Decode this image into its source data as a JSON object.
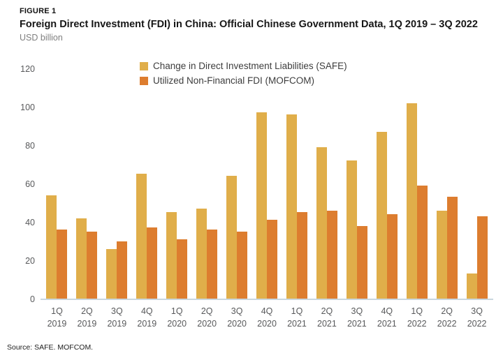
{
  "figure_label": "FIGURE 1",
  "title": "Foreign Direct Investment (FDI) in China: Official Chinese Government Data, 1Q 2019 – 3Q 2022",
  "unit_label": "USD billion",
  "source": "Source: SAFE. MOFCOM.",
  "colors": {
    "safe": "#e0ae4a",
    "mofcom": "#dd7d2f",
    "axis_line": "#c9d6de",
    "tick_text": "#58595b"
  },
  "chart_data": {
    "type": "bar",
    "title": "Foreign Direct Investment (FDI) in China: Official Chinese Government Data, 1Q 2019 – 3Q 2022",
    "xlabel": "",
    "ylabel": "USD billion",
    "ylim": [
      0,
      120
    ],
    "yticks": [
      0,
      20,
      40,
      60,
      80,
      100,
      120
    ],
    "grid": false,
    "legend_position": "top-center",
    "categories": [
      {
        "quarter": "1Q",
        "year": "2019"
      },
      {
        "quarter": "2Q",
        "year": "2019"
      },
      {
        "quarter": "3Q",
        "year": "2019"
      },
      {
        "quarter": "4Q",
        "year": "2019"
      },
      {
        "quarter": "1Q",
        "year": "2020"
      },
      {
        "quarter": "2Q",
        "year": "2020"
      },
      {
        "quarter": "3Q",
        "year": "2020"
      },
      {
        "quarter": "4Q",
        "year": "2020"
      },
      {
        "quarter": "1Q",
        "year": "2021"
      },
      {
        "quarter": "2Q",
        "year": "2021"
      },
      {
        "quarter": "3Q",
        "year": "2021"
      },
      {
        "quarter": "4Q",
        "year": "2021"
      },
      {
        "quarter": "1Q",
        "year": "2022"
      },
      {
        "quarter": "2Q",
        "year": "2022"
      },
      {
        "quarter": "3Q",
        "year": "2022"
      }
    ],
    "series": [
      {
        "name": "Change in Direct Investment Liabilities (SAFE)",
        "color_key": "safe",
        "values": [
          54,
          42,
          26,
          65,
          45,
          47,
          64,
          97,
          96,
          79,
          72,
          87,
          102,
          46,
          13
        ]
      },
      {
        "name": "Utilized Non-Financial FDI (MOFCOM)",
        "color_key": "mofcom",
        "values": [
          36,
          35,
          30,
          37,
          31,
          36,
          35,
          41,
          45,
          46,
          38,
          44,
          59,
          53,
          43
        ]
      }
    ]
  }
}
